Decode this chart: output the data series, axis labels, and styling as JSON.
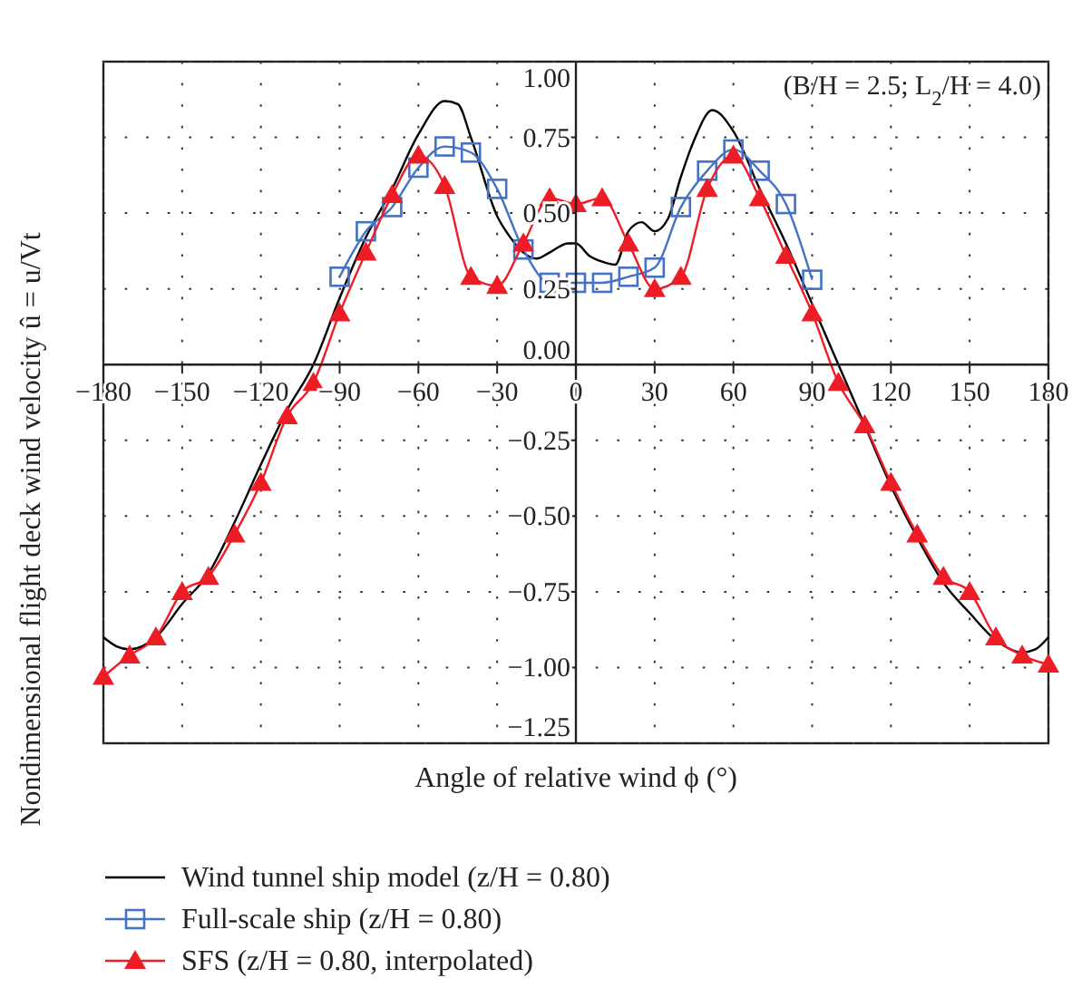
{
  "chart_data": {
    "type": "line",
    "xlabel": "Angle of relative wind ϕ (°)",
    "ylabel": "Nondimensional flight deck wind velocity û = u/Vt",
    "xlim": [
      -180,
      180
    ],
    "xticks": [
      {
        "value": -180,
        "label": "−180"
      },
      {
        "value": -150,
        "label": "−150"
      },
      {
        "value": -120,
        "label": "−120"
      },
      {
        "value": -90,
        "label": "−90"
      },
      {
        "value": -60,
        "label": "−60"
      },
      {
        "value": -30,
        "label": "−30"
      },
      0,
      30,
      60,
      90,
      120,
      150,
      180
    ],
    "ylim": [
      -1.25,
      1
    ],
    "yticks": [
      {
        "value": -1.25,
        "label": "−1.25"
      },
      {
        "value": -1,
        "label": "−1.00"
      },
      {
        "value": -0.75,
        "label": "−0.75"
      },
      {
        "value": -0.5,
        "label": "−0.50"
      },
      {
        "value": -0.25,
        "label": "−0.25"
      },
      {
        "value": 0,
        "label": "0.00"
      },
      {
        "value": 0.25,
        "label": "0.25"
      },
      {
        "value": 0.5,
        "label": "0.50"
      },
      {
        "value": 0.75,
        "label": "0.75"
      },
      {
        "value": 1,
        "label": "1.00"
      }
    ],
    "grid": true,
    "legend": "bottom",
    "annotations": [
      "(B/H = 2.5; L$_{2}$/H = 4.0)"
    ],
    "series": [
      {
        "name": "Wind tunnel ship model (z/H = 0.80)",
        "color": "#000000",
        "marker": "none",
        "x": [
          -180,
          -175,
          -170,
          -160,
          -150,
          -140,
          -130,
          -120,
          -110,
          -100,
          -90,
          -80,
          -70,
          -60,
          -50,
          -45,
          -40,
          -30,
          -25,
          -20,
          -15,
          -10,
          -3,
          0,
          5,
          10,
          15,
          20,
          25,
          30,
          35,
          40,
          45,
          52,
          60,
          70,
          80,
          90,
          100,
          110,
          120,
          130,
          140,
          150,
          160,
          170,
          175,
          180
        ],
        "values": [
          -0.9,
          -0.93,
          -0.94,
          -0.9,
          -0.79,
          -0.69,
          -0.52,
          -0.33,
          -0.15,
          0.0,
          0.22,
          0.42,
          0.58,
          0.76,
          0.87,
          0.86,
          0.75,
          0.49,
          0.42,
          0.37,
          0.35,
          0.37,
          0.4,
          0.4,
          0.36,
          0.34,
          0.33,
          0.44,
          0.47,
          0.44,
          0.48,
          0.62,
          0.74,
          0.84,
          0.77,
          0.58,
          0.4,
          0.2,
          0.0,
          -0.2,
          -0.4,
          -0.57,
          -0.72,
          -0.82,
          -0.91,
          -0.95,
          -0.94,
          -0.9
        ]
      },
      {
        "name": "Full-scale ship (z/H = 0.80)",
        "color": "#4472c4",
        "marker": "square",
        "x": [
          -90,
          -80,
          -70,
          -60,
          -50,
          -40,
          -30,
          -20,
          -10,
          0,
          10,
          20,
          30,
          40,
          50,
          60,
          70,
          80,
          90
        ],
        "values": [
          0.29,
          0.44,
          0.52,
          0.65,
          0.72,
          0.7,
          0.58,
          0.38,
          0.27,
          0.27,
          0.27,
          0.29,
          0.32,
          0.52,
          0.64,
          0.71,
          0.64,
          0.53,
          0.28
        ]
      },
      {
        "name": "SFS (z/H = 0.80, interpolated)",
        "color": "#ee1c25",
        "marker": "triangle",
        "x": [
          -180,
          -170,
          -160,
          -150,
          -140,
          -130,
          -120,
          -110,
          -100,
          -90,
          -80,
          -70,
          -60,
          -50,
          -40,
          -30,
          -20,
          -10,
          0,
          10,
          20,
          30,
          40,
          50,
          60,
          70,
          80,
          90,
          100,
          110,
          120,
          130,
          140,
          150,
          160,
          170,
          180
        ],
        "values": [
          -1.03,
          -0.96,
          -0.9,
          -0.75,
          -0.7,
          -0.56,
          -0.39,
          -0.17,
          -0.06,
          0.17,
          0.37,
          0.56,
          0.69,
          0.59,
          0.29,
          0.26,
          0.4,
          0.55,
          0.53,
          0.55,
          0.4,
          0.25,
          0.29,
          0.58,
          0.69,
          0.55,
          0.36,
          0.17,
          -0.06,
          -0.2,
          -0.39,
          -0.56,
          -0.7,
          -0.75,
          -0.9,
          -0.96,
          -0.99
        ]
      }
    ]
  }
}
